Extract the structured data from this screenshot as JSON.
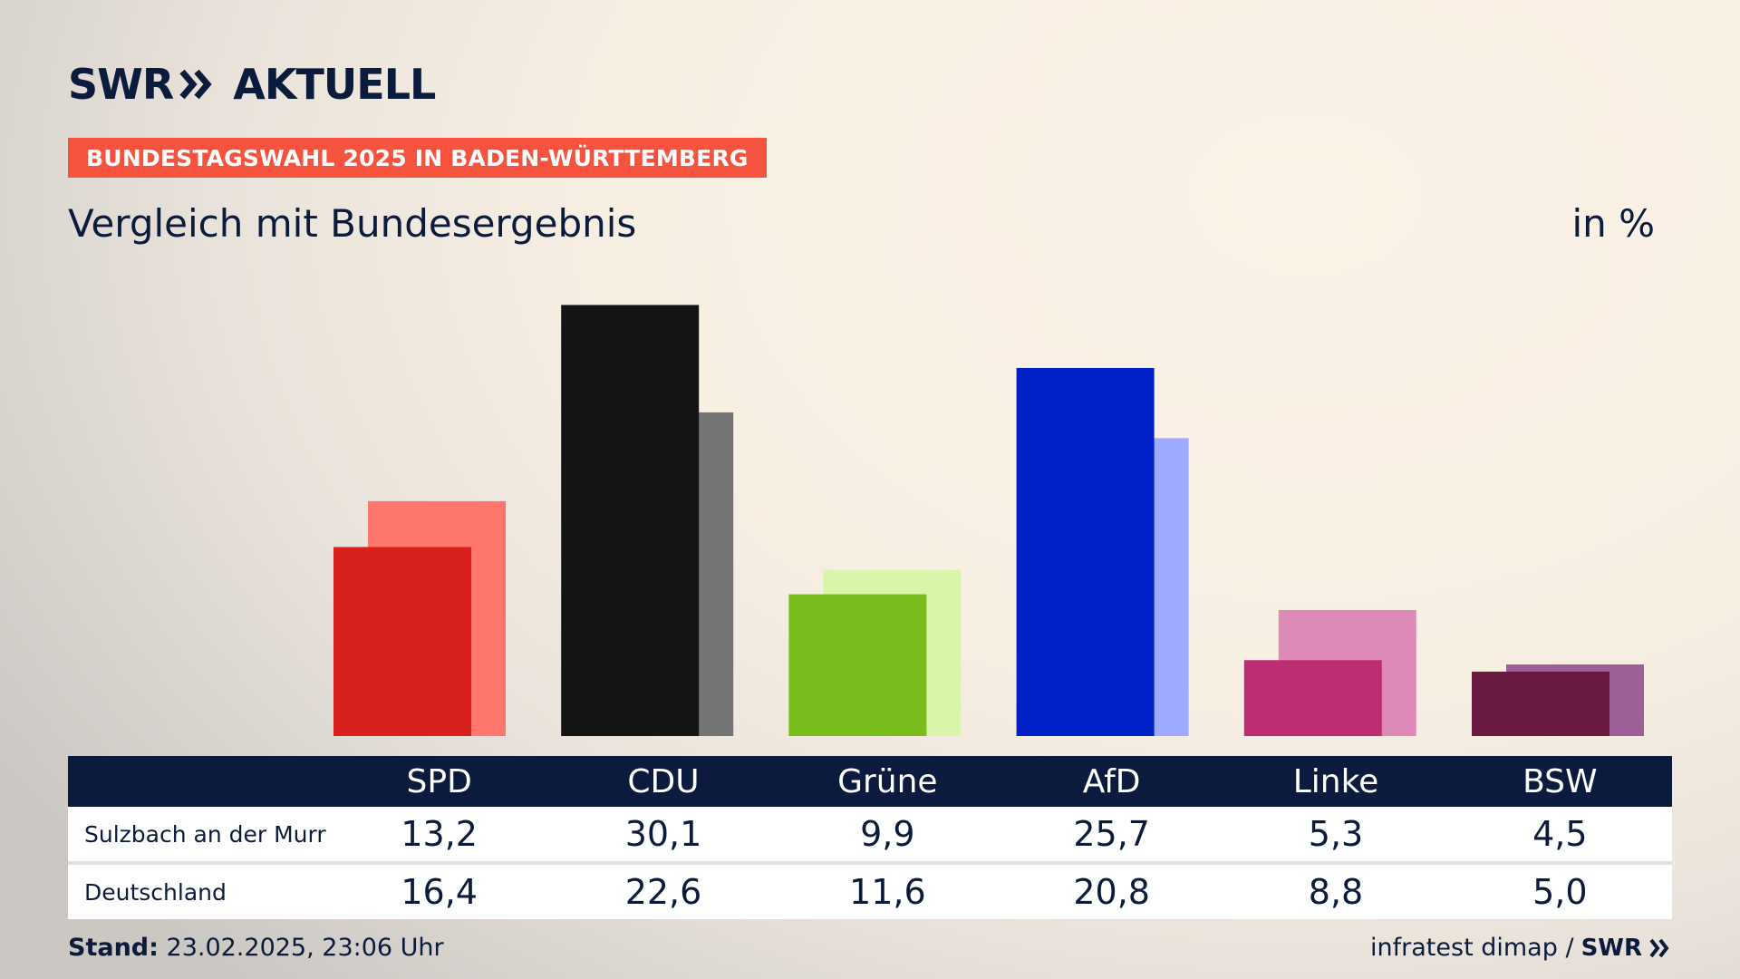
{
  "brand": {
    "logo_text": "SWR",
    "logo_suffix": "AKTUELL"
  },
  "badge": "BUNDESTAGSWAHL 2025 IN BADEN-WÜRTTEMBERG",
  "subtitle": "Vergleich mit Bundesergebnis",
  "unit": "in %",
  "chart_data": {
    "type": "bar",
    "categories": [
      "SPD",
      "CDU",
      "Grüne",
      "AfD",
      "Linke",
      "BSW"
    ],
    "series": [
      {
        "name": "Sulzbach an der Murr",
        "values": [
          13.2,
          30.1,
          9.9,
          25.7,
          5.3,
          4.5
        ]
      },
      {
        "name": "Deutschland",
        "values": [
          16.4,
          22.6,
          11.6,
          20.8,
          8.8,
          5.0
        ]
      }
    ],
    "colors": {
      "front": [
        "#d8201f",
        "#141414",
        "#79bd1d",
        "#0020c8",
        "#bb2e72",
        "#6a1a40"
      ],
      "back": [
        "#ff766c",
        "#747474",
        "#d8f5aa",
        "#9eaaff",
        "#de8ab7",
        "#9c5f97"
      ]
    },
    "ylim": [
      0,
      32
    ]
  },
  "table": {
    "rows": [
      {
        "label": "Sulzbach an der Murr",
        "values": [
          "13,2",
          "30,1",
          "9,9",
          "25,7",
          "5,3",
          "4,5"
        ]
      },
      {
        "label": "Deutschland",
        "values": [
          "16,4",
          "22,6",
          "11,6",
          "20,8",
          "8,8",
          "5,0"
        ]
      }
    ]
  },
  "footer": {
    "stand_label": "Stand:",
    "stand_value": "23.02.2025, 23:06 Uhr",
    "source": "infratest dimap /",
    "source_logo": "SWR"
  }
}
